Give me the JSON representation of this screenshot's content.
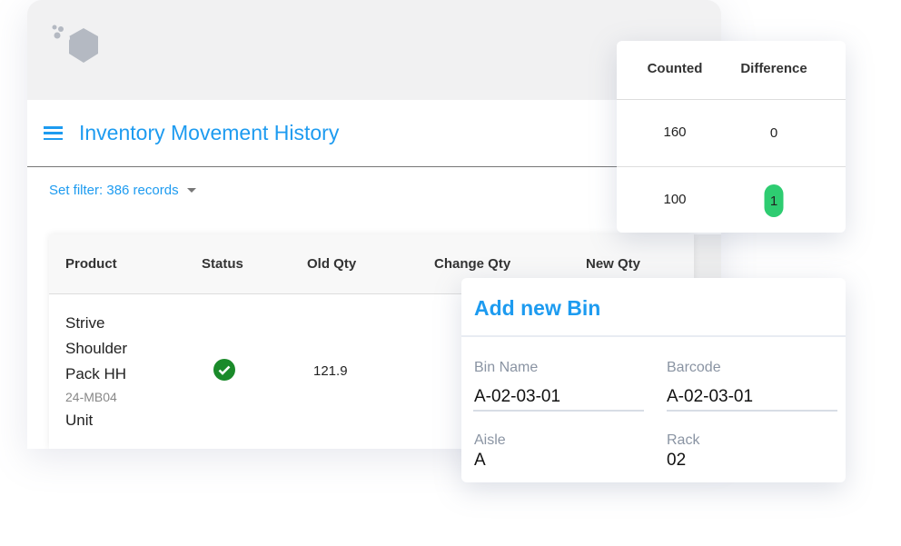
{
  "app": {
    "title": "Inventory Movement History",
    "filter": "Set filter: 386 records",
    "accent": "#1d9bf0"
  },
  "table": {
    "columns": [
      "Product",
      "Status",
      "Old Qty",
      "Change Qty",
      "New Qty"
    ],
    "rows": [
      {
        "product_lines": [
          "Strive",
          "Shoulder",
          "Pack HH"
        ],
        "sku": "24-MB04",
        "unit": "Unit",
        "status": "check-circle-icon",
        "old_qty": "121.9"
      }
    ]
  },
  "count_card": {
    "columns": [
      "Counted",
      "Difference"
    ],
    "rows": [
      {
        "counted": "160",
        "difference": "0"
      },
      {
        "counted": "100",
        "difference": "1"
      }
    ],
    "badge_color": "#2ecc71"
  },
  "bin_card": {
    "title": "Add new Bin",
    "bin_name_label": "Bin Name",
    "bin_name": "A-02-03-01",
    "barcode_label": "Barcode",
    "barcode": "A-02-03-01",
    "aisle_label": "Aisle",
    "aisle": "A",
    "rack_label": "Rack",
    "rack": "02"
  }
}
